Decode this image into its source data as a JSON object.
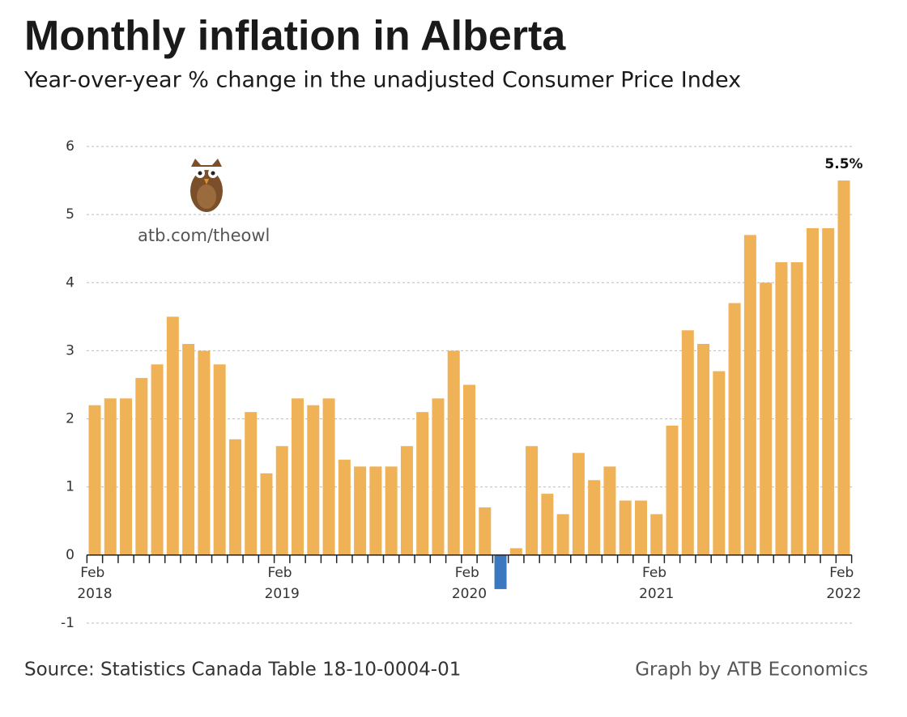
{
  "chart_data": {
    "type": "bar",
    "title": "Monthly inflation in Alberta",
    "subtitle": "Year-over-year % change in the unadjusted Consumer Price Index",
    "categories": [
      "Feb 2018",
      null,
      null,
      null,
      null,
      null,
      null,
      null,
      null,
      null,
      null,
      null,
      "Feb 2019",
      null,
      null,
      null,
      null,
      null,
      null,
      null,
      null,
      null,
      null,
      null,
      "Feb 2020",
      null,
      null,
      null,
      null,
      null,
      null,
      null,
      null,
      null,
      null,
      null,
      "Feb 2021",
      null,
      null,
      null,
      null,
      null,
      null,
      null,
      null,
      null,
      null,
      null,
      "Feb 2022"
    ],
    "values": [
      2.2,
      2.3,
      2.3,
      2.6,
      2.8,
      3.5,
      3.1,
      3.0,
      2.8,
      1.7,
      2.1,
      1.2,
      1.6,
      2.3,
      2.2,
      2.3,
      1.4,
      1.3,
      1.3,
      1.3,
      1.6,
      2.1,
      2.3,
      3.0,
      2.5,
      0.7,
      -0.5,
      0.1,
      1.6,
      0.9,
      0.6,
      1.5,
      1.1,
      1.3,
      0.8,
      0.8,
      0.6,
      1.9,
      3.3,
      3.1,
      2.7,
      3.7,
      4.7,
      4.0,
      4.3,
      4.3,
      4.8,
      4.8,
      5.5
    ],
    "value_labels": [
      null,
      null,
      null,
      null,
      null,
      null,
      null,
      null,
      null,
      null,
      null,
      null,
      null,
      null,
      null,
      null,
      null,
      null,
      null,
      null,
      null,
      null,
      null,
      null,
      null,
      null,
      null,
      null,
      null,
      null,
      null,
      null,
      null,
      null,
      null,
      null,
      null,
      null,
      null,
      null,
      null,
      null,
      null,
      null,
      null,
      null,
      null,
      null,
      "5.5%"
    ],
    "color": "#efb257",
    "negative_color": "#3a78bf",
    "ylim": [
      -1,
      6
    ],
    "yticks": [
      -1,
      0,
      1,
      2,
      3,
      4,
      5,
      6
    ],
    "grid": true,
    "annotation": "atb.com/theowl",
    "source": "Source: Statistics Canada Table 18-10-0004-01",
    "credit": "Graph by ATB Economics"
  }
}
